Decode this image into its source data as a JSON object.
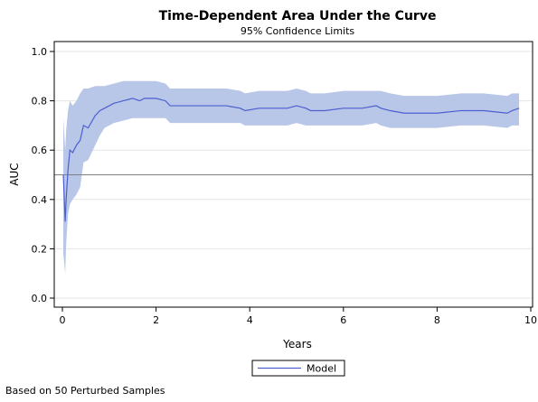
{
  "chart_data": {
    "type": "line",
    "title": "Time-Dependent Area Under the Curve",
    "subtitle": "95% Confidence Limits",
    "xlabel": "Years",
    "ylabel": "AUC",
    "xlim": [
      0,
      10
    ],
    "ylim": [
      0,
      1.0
    ],
    "xticks": [
      "0",
      "2",
      "4",
      "6",
      "8",
      "10"
    ],
    "yticks": [
      "0.0",
      "0.2",
      "0.4",
      "0.6",
      "0.8",
      "1.0"
    ],
    "grid": "horizontal",
    "reference_line": 0.5,
    "legend_position": "bottom-center",
    "footnote": "Based on 50 Perturbed Samples",
    "colors": {
      "line": "#4c5fd0",
      "band": "#b8c6e8",
      "reference": "#808080",
      "grid": "#e6e6e6"
    },
    "series": [
      {
        "name": "Model",
        "x": [
          0.02,
          0.06,
          0.08,
          0.12,
          0.16,
          0.22,
          0.3,
          0.38,
          0.45,
          0.55,
          0.7,
          0.8,
          0.9,
          1.1,
          1.3,
          1.5,
          1.65,
          1.75,
          1.85,
          2.0,
          2.2,
          2.3,
          2.4,
          3.0,
          3.5,
          3.8,
          3.9,
          4.2,
          4.5,
          4.8,
          5.0,
          5.2,
          5.3,
          5.6,
          6.0,
          6.4,
          6.7,
          6.8,
          7.0,
          7.3,
          7.6,
          8.0,
          8.5,
          9.0,
          9.5,
          9.6,
          9.75
        ],
        "y": [
          0.5,
          0.31,
          0.4,
          0.52,
          0.6,
          0.59,
          0.62,
          0.64,
          0.7,
          0.69,
          0.74,
          0.76,
          0.77,
          0.79,
          0.8,
          0.81,
          0.8,
          0.81,
          0.81,
          0.81,
          0.8,
          0.78,
          0.78,
          0.78,
          0.78,
          0.77,
          0.76,
          0.77,
          0.77,
          0.77,
          0.78,
          0.77,
          0.76,
          0.76,
          0.77,
          0.77,
          0.78,
          0.77,
          0.76,
          0.75,
          0.75,
          0.75,
          0.76,
          0.76,
          0.75,
          0.76,
          0.77
        ],
        "lower": [
          0.18,
          0.1,
          0.22,
          0.34,
          0.38,
          0.4,
          0.42,
          0.45,
          0.55,
          0.56,
          0.62,
          0.66,
          0.69,
          0.71,
          0.72,
          0.73,
          0.73,
          0.73,
          0.73,
          0.73,
          0.73,
          0.71,
          0.71,
          0.71,
          0.71,
          0.71,
          0.7,
          0.7,
          0.7,
          0.7,
          0.71,
          0.7,
          0.7,
          0.7,
          0.7,
          0.7,
          0.71,
          0.7,
          0.69,
          0.69,
          0.69,
          0.69,
          0.7,
          0.7,
          0.69,
          0.7,
          0.7
        ],
        "upper": [
          0.73,
          0.6,
          0.68,
          0.76,
          0.8,
          0.78,
          0.8,
          0.83,
          0.85,
          0.85,
          0.86,
          0.86,
          0.86,
          0.87,
          0.88,
          0.88,
          0.88,
          0.88,
          0.88,
          0.88,
          0.87,
          0.85,
          0.85,
          0.85,
          0.85,
          0.84,
          0.83,
          0.84,
          0.84,
          0.84,
          0.85,
          0.84,
          0.83,
          0.83,
          0.84,
          0.84,
          0.84,
          0.84,
          0.83,
          0.82,
          0.82,
          0.82,
          0.83,
          0.83,
          0.82,
          0.83,
          0.83
        ]
      }
    ]
  }
}
